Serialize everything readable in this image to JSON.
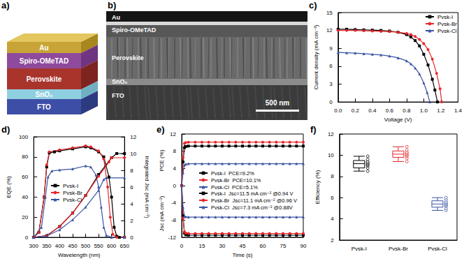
{
  "labels": [
    "a)",
    "b)",
    "c)",
    "d)",
    "e)",
    "f)"
  ],
  "schematic": {
    "layers": [
      "Au",
      "Spiro-OMeTAD",
      "Perovskite",
      "SnO₂",
      "FTO"
    ]
  },
  "sem": {
    "labels": [
      "Au",
      "Spiro-OMeTAD",
      "Perovskite",
      "SnO₂",
      "FTO"
    ],
    "scale_bar": "500 nm"
  },
  "chart_data": [
    {
      "type": "line",
      "x_label": "Voltage (V)",
      "y_label": "Current density (mA cm⁻²)",
      "xlim": [
        0,
        1.4
      ],
      "xticks": [
        {
          "value": 0,
          "label": "0.0"
        },
        0.2,
        0.4,
        0.6,
        0.8,
        {
          "value": 1,
          "label": "1.0"
        },
        1.2,
        1.4
      ],
      "ylim": [
        0,
        15
      ],
      "yticks": [
        0,
        3,
        6,
        9,
        12,
        15
      ],
      "grid": false,
      "legend": "upper right",
      "series": [
        {
          "name": "Pvsk-I",
          "color": "#000000",
          "marker": "square",
          "x": [
            0,
            0.1,
            0.2,
            0.3,
            0.4,
            0.5,
            0.6,
            0.7,
            0.8,
            0.85,
            0.9,
            0.95,
            1.0,
            1.05,
            1.1,
            1.13,
            1.16
          ],
          "values": [
            12.2,
            12.2,
            12.15,
            12.1,
            12.05,
            12.0,
            11.9,
            11.7,
            11.3,
            10.9,
            10.3,
            9.4,
            8.0,
            6.2,
            3.8,
            2.0,
            0
          ]
        },
        {
          "name": "Pvsk-Br",
          "color": "#e8262b",
          "marker": "circle",
          "x": [
            0,
            0.1,
            0.2,
            0.3,
            0.4,
            0.5,
            0.6,
            0.7,
            0.8,
            0.85,
            0.9,
            0.95,
            1.0,
            1.05,
            1.1,
            1.15,
            1.19,
            1.21
          ],
          "values": [
            12.0,
            12.0,
            12.0,
            11.95,
            11.9,
            11.85,
            11.8,
            11.7,
            11.5,
            11.3,
            11.0,
            10.5,
            9.8,
            8.8,
            7.2,
            4.8,
            2.2,
            0
          ]
        },
        {
          "name": "Pvsk-Cl",
          "color": "#3a53a4",
          "marker": "triangle",
          "x": [
            0,
            0.1,
            0.2,
            0.3,
            0.4,
            0.5,
            0.6,
            0.7,
            0.8,
            0.85,
            0.9,
            0.95,
            1.0,
            1.04,
            1.07
          ],
          "values": [
            8.3,
            8.25,
            8.2,
            8.1,
            8.0,
            7.9,
            7.7,
            7.4,
            6.9,
            6.4,
            5.7,
            4.7,
            3.2,
            1.6,
            0
          ]
        }
      ]
    },
    {
      "type": "line",
      "x_label": "Wavelength (nm)",
      "y_label": "EQE (%)",
      "y2_label": "Integrated Jsc (mA cm⁻²)",
      "xlim": [
        300,
        650
      ],
      "xticks": [
        300,
        350,
        400,
        450,
        500,
        550,
        600,
        650
      ],
      "ylim": [
        0,
        100
      ],
      "yticks": [
        0,
        20,
        40,
        60,
        80,
        100
      ],
      "y2lim": [
        0,
        12
      ],
      "y2ticks": [
        0,
        2,
        4,
        6,
        8,
        10,
        12
      ],
      "grid": false,
      "legend": "center left",
      "series": [
        {
          "name": "Pvsk-I",
          "color": "#000000",
          "marker": "square",
          "x": [
            300,
            320,
            340,
            350,
            360,
            380,
            400,
            450,
            500,
            520,
            550,
            570,
            590,
            600,
            610,
            620,
            630,
            650
          ],
          "values": [
            0,
            5,
            40,
            70,
            84,
            85,
            86,
            88,
            90,
            89,
            85,
            80,
            60,
            40,
            10,
            1,
            0,
            0
          ]
        },
        {
          "name": "Pvsk-Br",
          "color": "#e8262b",
          "marker": "circle",
          "x": [
            300,
            320,
            340,
            350,
            360,
            400,
            450,
            500,
            520,
            550,
            570,
            585,
            595,
            605,
            620,
            650
          ],
          "values": [
            0,
            5,
            40,
            72,
            85,
            87,
            89,
            91,
            90,
            86,
            78,
            50,
            20,
            3,
            0,
            0
          ]
        },
        {
          "name": "Pvsk-Cl",
          "color": "#3a53a4",
          "marker": "triangle",
          "x": [
            300,
            330,
            345,
            355,
            370,
            400,
            450,
            500,
            520,
            540,
            550,
            560,
            570,
            580,
            600,
            650
          ],
          "values": [
            0,
            10,
            40,
            60,
            66,
            67,
            68,
            71,
            70,
            62,
            50,
            30,
            10,
            2,
            0,
            0
          ]
        },
        {
          "axis": "y2",
          "color": "#000000",
          "marker": "square",
          "x": [
            300,
            350,
            400,
            450,
            500,
            550,
            600,
            620,
            650
          ],
          "values": [
            0,
            0.2,
            1.3,
            2.9,
            5.0,
            7.5,
            9.5,
            10.0,
            10.0
          ]
        },
        {
          "axis": "y2",
          "color": "#e8262b",
          "marker": "circle",
          "x": [
            300,
            350,
            400,
            450,
            500,
            550,
            590,
            600,
            650
          ],
          "values": [
            0,
            0.2,
            1.3,
            2.9,
            5.0,
            7.3,
            9.0,
            9.5,
            9.5
          ]
        },
        {
          "axis": "y2",
          "color": "#3a53a4",
          "marker": "triangle",
          "x": [
            300,
            350,
            400,
            450,
            500,
            550,
            570,
            580,
            650
          ],
          "values": [
            0,
            0.15,
            0.9,
            2.1,
            3.6,
            5.6,
            6.9,
            7.1,
            7.1
          ]
        }
      ]
    },
    {
      "type": "line",
      "x_label": "Time (s)",
      "y_label": "PCE (%)",
      "y_label_lower": "Jsc (mA cm⁻²)",
      "xlim": [
        0,
        90
      ],
      "xticks": [
        0,
        15,
        30,
        45,
        60,
        75,
        90
      ],
      "ylim": [
        -12,
        12
      ],
      "yticks": [
        -12,
        -8,
        -4,
        0,
        4,
        8,
        12
      ],
      "grid": false,
      "legend": "center left",
      "x": [
        0,
        1,
        2,
        3,
        5,
        10,
        15,
        20,
        25,
        30,
        35,
        40,
        45,
        50,
        55,
        60,
        65,
        70,
        75,
        80,
        85,
        90
      ],
      "series_upper": [
        {
          "name": "Pvsk-I  PCE=9.2%",
          "color": "#000000",
          "marker": "square",
          "values": [
            0,
            5.5,
            8.8,
            9.1,
            9.2,
            9.2,
            9.2,
            9.2,
            9.2,
            9.2,
            9.2,
            9.2,
            9.2,
            9.2,
            9.2,
            9.2,
            9.2,
            9.2,
            9.2,
            9.2,
            9.2,
            9.2
          ]
        },
        {
          "name": "Pvsk-Br  PCE=10.1%",
          "color": "#e8262b",
          "marker": "circle",
          "values": [
            0,
            6.5,
            9.8,
            10.0,
            10.1,
            10.1,
            10.1,
            10.1,
            10.1,
            10.1,
            10.1,
            10.1,
            10.1,
            10.1,
            10.1,
            10.1,
            10.1,
            10.1,
            10.1,
            10.1,
            10.1,
            10.1
          ]
        },
        {
          "name": "Pvsk-Cl  PCE=5.1%",
          "color": "#3a53a4",
          "marker": "triangle",
          "values": [
            0,
            3.0,
            4.8,
            5.0,
            5.1,
            5.1,
            5.1,
            5.1,
            5.1,
            5.1,
            5.1,
            5.1,
            5.1,
            5.1,
            5.1,
            5.1,
            5.1,
            5.1,
            5.1,
            5.1,
            5.1,
            5.1
          ]
        }
      ],
      "series_lower": [
        {
          "name": "Pvsk-I  Jsc=11.5 mA cm⁻² @0.94 V",
          "color": "#000000",
          "marker": "square",
          "values": [
            0,
            -7.0,
            -11.0,
            -11.4,
            -11.5,
            -11.5,
            -11.5,
            -11.5,
            -11.5,
            -11.5,
            -11.5,
            -11.5,
            -11.5,
            -11.5,
            -11.5,
            -11.5,
            -11.5,
            -11.5,
            -11.5,
            -11.5,
            -11.5,
            -11.5
          ]
        },
        {
          "name": "Pvsk-Br  Jsc=11.1 mA cm⁻² @0.96 V",
          "color": "#e8262b",
          "marker": "circle",
          "values": [
            0,
            -7.5,
            -10.7,
            -11.0,
            -11.1,
            -11.1,
            -11.1,
            -11.1,
            -11.1,
            -11.1,
            -11.1,
            -11.1,
            -11.1,
            -11.1,
            -11.1,
            -11.1,
            -11.1,
            -11.1,
            -11.1,
            -11.1,
            -11.1,
            -11.1
          ]
        },
        {
          "name": "Pvsk-Cl  Jsc=7.3 mA cm⁻² @0.88V",
          "color": "#3a53a4",
          "marker": "triangle",
          "values": [
            0,
            -5.0,
            -7.1,
            -7.2,
            -7.3,
            -7.3,
            -7.3,
            -7.3,
            -7.3,
            -7.3,
            -7.3,
            -7.3,
            -7.3,
            -7.3,
            -7.3,
            -7.3,
            -7.3,
            -7.3,
            -7.3,
            -7.3,
            -7.3,
            -7.3
          ]
        }
      ]
    },
    {
      "type": "box",
      "y_label": "Efficiency (%)",
      "categories": [
        "Pvsk-I",
        "Pvsk-Br",
        "Pvsk-Cl"
      ],
      "colors": [
        "#000000",
        "#e8262b",
        "#3a53a4"
      ],
      "ylim": [
        2,
        12
      ],
      "yticks": [
        2,
        4,
        6,
        8,
        10,
        12
      ],
      "grid": false,
      "boxes": [
        [
          8.5,
          8.8,
          9.2,
          9.5,
          9.9
        ],
        [
          9.4,
          9.8,
          10.1,
          10.4,
          10.8
        ],
        [
          4.8,
          5.1,
          5.4,
          5.7,
          6.0
        ]
      ],
      "points": [
        [
          8.5,
          8.8,
          9.0,
          9.1,
          9.2,
          9.3,
          9.4,
          9.6,
          9.9
        ],
        [
          9.4,
          9.7,
          9.9,
          10.0,
          10.1,
          10.2,
          10.3,
          10.5,
          10.8
        ],
        [
          4.8,
          5.0,
          5.2,
          5.3,
          5.4,
          5.5,
          5.6,
          5.8,
          6.0
        ]
      ]
    }
  ]
}
